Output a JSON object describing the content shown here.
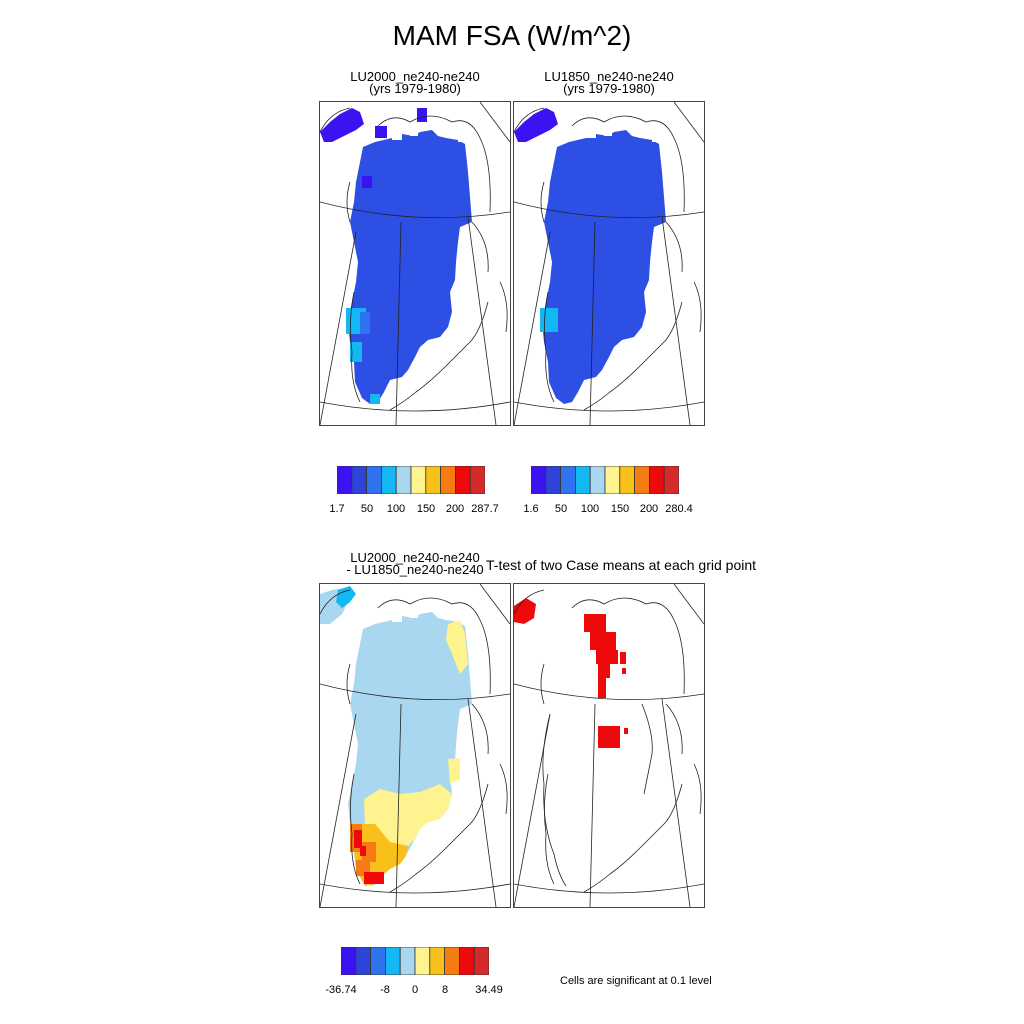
{
  "title": "MAM FSA (W/m^2)",
  "panels": {
    "top_left": {
      "title_line1": "LU2000_ne240-ne240",
      "title_line2": "(yrs 1979-1980)"
    },
    "top_right": {
      "title_line1": "LU1850_ne240-ne240",
      "title_line2": "(yrs 1979-1980)"
    },
    "bottom_left": {
      "title_line1": "LU2000_ne240-ne240",
      "title_line2": "- LU1850_ne240-ne240"
    },
    "bottom_right": {
      "title": "T-test of two Case means at each grid point"
    }
  },
  "colorbars": {
    "top_left": {
      "colors": [
        "#3b12f2",
        "#2e44d8",
        "#2f73ef",
        "#13b7f4",
        "#a8d7ef",
        "#fff38f",
        "#f9c01c",
        "#f57c13",
        "#ee0a0a",
        "#d42a2a"
      ],
      "labels": [
        "1.7",
        "50",
        "100",
        "150",
        "200",
        "287.7"
      ]
    },
    "top_right": {
      "colors": [
        "#3b12f2",
        "#2e44d8",
        "#2f73ef",
        "#13b7f4",
        "#a8d7ef",
        "#fff38f",
        "#f9c01c",
        "#f57c13",
        "#ee0a0a",
        "#d42a2a"
      ],
      "labels": [
        "1.6",
        "50",
        "100",
        "150",
        "200",
        "280.4"
      ]
    },
    "bottom": {
      "colors": [
        "#3b12f2",
        "#2e44d8",
        "#2f73ef",
        "#13b7f4",
        "#a8d7ef",
        "#fff38f",
        "#f9c01c",
        "#f57c13",
        "#ee0a0a",
        "#d42a2a"
      ],
      "labels": [
        "-36.74",
        "-8",
        "0",
        "8",
        "34.49"
      ]
    }
  },
  "significance_note": "Cells are significant at 0.1 level",
  "colors": {
    "ice_blue": "#2e4fe3",
    "deep_purple": "#3b12f2",
    "cyan": "#13b7f4",
    "light_blue": "#a8d7ef",
    "yellow": "#fff38f",
    "orange": "#f9c01c",
    "dark_orange": "#f57c13",
    "red": "#ee0a0a"
  }
}
